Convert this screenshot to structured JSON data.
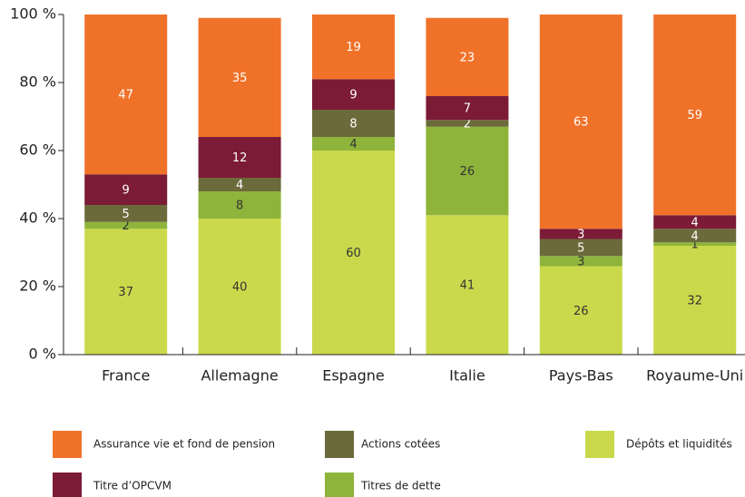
{
  "chart_data": {
    "type": "stacked_bar",
    "categories": [
      "France",
      "Allemagne",
      "Espagne",
      "Italie",
      "Pays-Bas",
      "Royaume-Uni"
    ],
    "series": [
      {
        "name": "Dépôts et liquidités",
        "color": "#c9d94b",
        "values": [
          37,
          40,
          60,
          41,
          26,
          32
        ]
      },
      {
        "name": "Titres de dette",
        "color": "#8fb43b",
        "values": [
          2,
          8,
          4,
          26,
          3,
          1
        ]
      },
      {
        "name": "Actions cotées",
        "color": "#6b6a3b",
        "values": [
          5,
          4,
          8,
          2,
          5,
          4
        ]
      },
      {
        "name": "Titre d’OPCVM",
        "color": "#7b1b36",
        "values": [
          9,
          12,
          9,
          7,
          3,
          4
        ]
      },
      {
        "name": "Assurance vie et fond de pension",
        "color": "#f07229",
        "values": [
          47,
          35,
          19,
          23,
          63,
          59
        ]
      }
    ],
    "ylim": [
      0,
      100
    ],
    "yticks": [
      {
        "value": 0,
        "label": "0 %"
      },
      {
        "value": 20,
        "label": "20 %"
      },
      {
        "value": 40,
        "label": "40 %"
      },
      {
        "value": 60,
        "label": "60 %"
      },
      {
        "value": 80,
        "label": "80 %"
      },
      {
        "value": 100,
        "label": "100 %"
      }
    ]
  }
}
